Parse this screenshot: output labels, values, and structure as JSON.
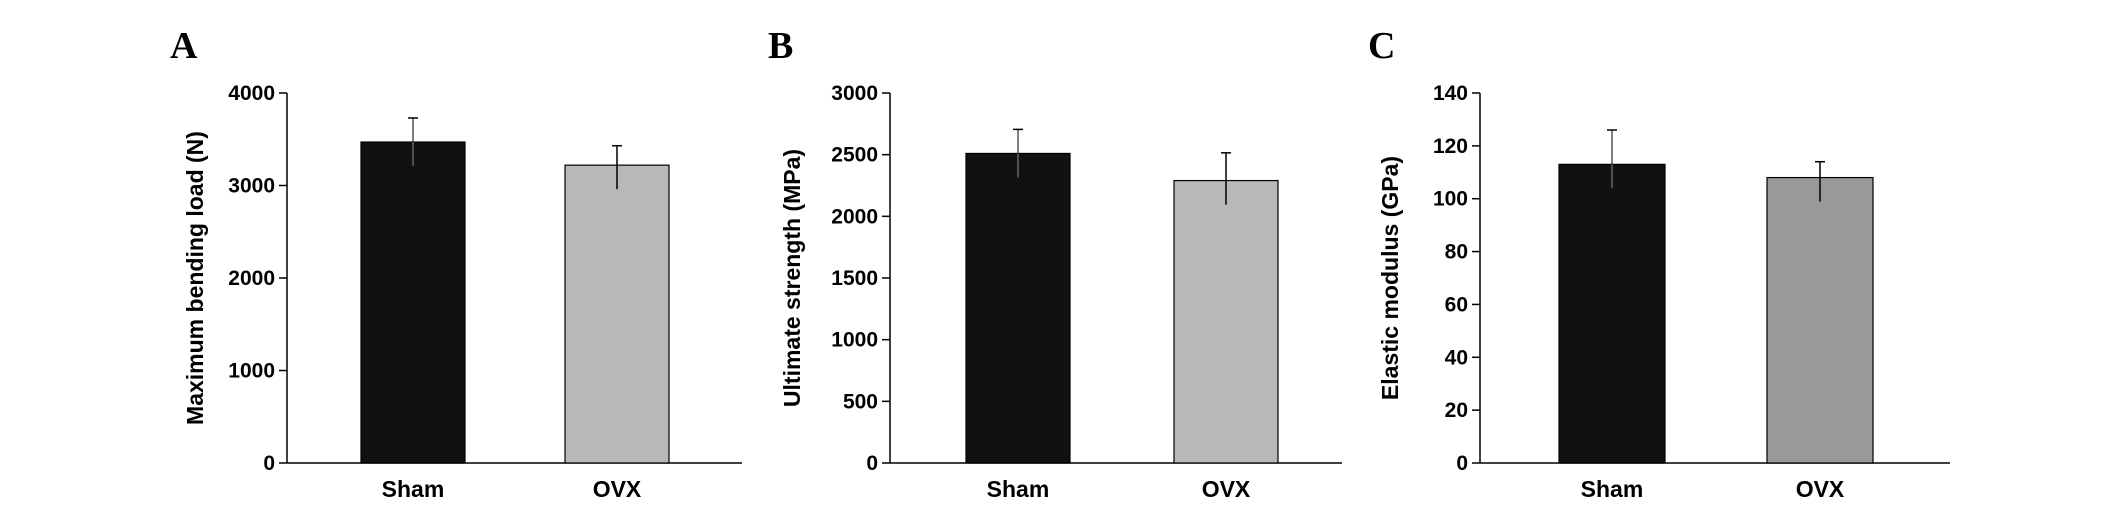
{
  "chart_data": [
    {
      "type": "bar",
      "panel_label": "A",
      "categories": [
        "Sham",
        "OVX"
      ],
      "values": [
        3470,
        3220
      ],
      "errors": [
        260,
        210
      ],
      "colors": [
        "#111111",
        "#b8b8b8"
      ],
      "ylabel": "Maximum bending load (N)",
      "ylim": [
        0,
        4000
      ],
      "yticks": [
        "0",
        "1000",
        "2000",
        "3000",
        "4000"
      ],
      "grid": false,
      "legend": "none"
    },
    {
      "type": "bar",
      "panel_label": "B",
      "categories": [
        "Sham",
        "OVX"
      ],
      "values": [
        2510,
        2290
      ],
      "errors": [
        195,
        225
      ],
      "colors": [
        "#111111",
        "#b8b8b8"
      ],
      "ylabel": "Ultimate strength (MPa)",
      "ylim": [
        0,
        3000
      ],
      "yticks": [
        "0",
        "500",
        "1000",
        "1500",
        "2000",
        "2500",
        "3000"
      ],
      "grid": false,
      "legend": "none"
    },
    {
      "type": "bar",
      "panel_label": "C",
      "categories": [
        "Sham",
        "OVX"
      ],
      "values": [
        113,
        108
      ],
      "errors": [
        13,
        6
      ],
      "colors": [
        "#111111",
        "#999999"
      ],
      "ylabel": "Elastic modulus (GPa)",
      "ylim": [
        0,
        140
      ],
      "yticks": [
        "0",
        "20",
        "40",
        "60",
        "80",
        "100",
        "120",
        "140"
      ],
      "grid": false,
      "legend": "none"
    }
  ]
}
